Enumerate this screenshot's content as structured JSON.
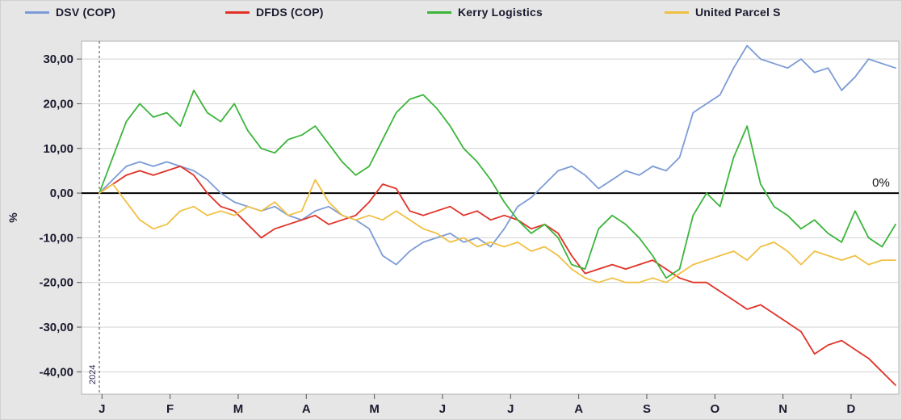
{
  "legend": [
    {
      "label": "DSV (COP)",
      "color": "#7b9bd6"
    },
    {
      "label": "DFDS (COP)",
      "color": "#e03227"
    },
    {
      "label": "Kerry Logistics",
      "color": "#3bb53b"
    },
    {
      "label": "United Parcel S",
      "color": "#f0c043"
    }
  ],
  "chart_data": {
    "type": "line",
    "title": "",
    "ylabel": "%",
    "xlabel": "",
    "x_tick_labels": [
      "J",
      "F",
      "M",
      "A",
      "M",
      "J",
      "J",
      "A",
      "S",
      "O",
      "N",
      "D"
    ],
    "year_label": "2024",
    "zero_label": "0%",
    "y_ticks": [
      30,
      20,
      10,
      0,
      -10,
      -20,
      -30,
      -40
    ],
    "y_tick_labels": [
      "30,00",
      "20,00",
      "10,00",
      "0,00",
      "-10,00",
      "-20,00",
      "-30,00",
      "-40,00"
    ],
    "ylim": [
      -45,
      34
    ],
    "grid": true,
    "legend_position": "top",
    "series": [
      {
        "name": "DSV (COP)",
        "color": "#7b9bd6",
        "values": [
          0,
          3,
          6,
          7,
          6,
          7,
          6,
          5,
          3,
          0,
          -2,
          -3,
          -4,
          -3,
          -5,
          -6,
          -4,
          -3,
          -5,
          -6,
          -8,
          -14,
          -16,
          -13,
          -11,
          -10,
          -9,
          -11,
          -10,
          -12,
          -8,
          -3,
          -1,
          2,
          5,
          6,
          4,
          1,
          3,
          5,
          4,
          6,
          5,
          8,
          18,
          20,
          22,
          28,
          33,
          30,
          29,
          28,
          30,
          27,
          28,
          23,
          26,
          30,
          29,
          28
        ]
      },
      {
        "name": "DFDS (COP)",
        "color": "#e03227",
        "values": [
          0,
          2,
          4,
          5,
          4,
          5,
          6,
          4,
          0,
          -3,
          -4,
          -7,
          -10,
          -8,
          -7,
          -6,
          -5,
          -7,
          -6,
          -5,
          -2,
          2,
          1,
          -4,
          -5,
          -4,
          -3,
          -5,
          -4,
          -6,
          -5,
          -6,
          -8,
          -7,
          -9,
          -14,
          -18,
          -17,
          -16,
          -17,
          -16,
          -15,
          -17,
          -19,
          -20,
          -20,
          -22,
          -24,
          -26,
          -25,
          -27,
          -29,
          -31,
          -36,
          -34,
          -33,
          -35,
          -37,
          -40,
          -43
        ]
      },
      {
        "name": "Kerry Logistics",
        "color": "#3bb53b",
        "values": [
          0,
          8,
          16,
          20,
          17,
          18,
          15,
          23,
          18,
          16,
          20,
          14,
          10,
          9,
          12,
          13,
          15,
          11,
          7,
          4,
          6,
          12,
          18,
          21,
          22,
          19,
          15,
          10,
          7,
          3,
          -2,
          -6,
          -9,
          -7,
          -10,
          -16,
          -17,
          -8,
          -5,
          -7,
          -10,
          -14,
          -19,
          -17,
          -5,
          0,
          -3,
          8,
          15,
          2,
          -3,
          -5,
          -8,
          -6,
          -9,
          -11,
          -4,
          -10,
          -12,
          -7
        ]
      },
      {
        "name": "United Parcel S",
        "color": "#f0c043",
        "values": [
          0,
          2,
          -2,
          -6,
          -8,
          -7,
          -4,
          -3,
          -5,
          -4,
          -5,
          -3,
          -4,
          -2,
          -5,
          -4,
          3,
          -2,
          -5,
          -6,
          -5,
          -6,
          -4,
          -6,
          -8,
          -9,
          -11,
          -10,
          -12,
          -11,
          -12,
          -11,
          -13,
          -12,
          -14,
          -17,
          -19,
          -20,
          -19,
          -20,
          -20,
          -19,
          -20,
          -18,
          -16,
          -15,
          -14,
          -13,
          -15,
          -12,
          -11,
          -13,
          -16,
          -13,
          -14,
          -15,
          -14,
          -16,
          -15,
          -15
        ]
      }
    ]
  }
}
